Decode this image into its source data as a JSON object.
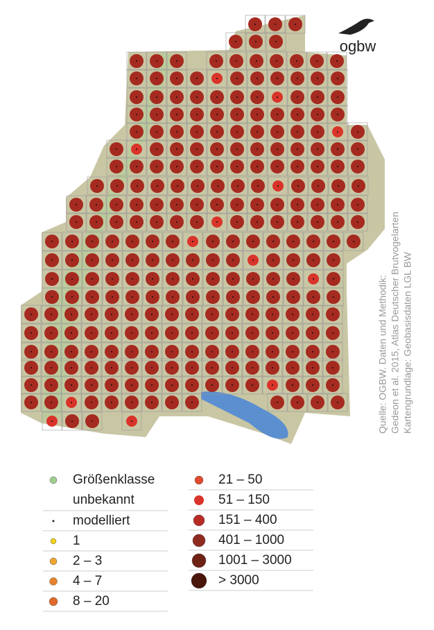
{
  "logo": "ogbw",
  "source": [
    "Quelle: OGBW. Daten und Methodik:",
    "Gedeon et al. 2015, Atlas Deutscher Brutvogelarten",
    "Kartengrundlage: Geobasisdaten LGL BW"
  ],
  "legend": {
    "left": [
      {
        "label": [
          "Größenklasse",
          "unbekannt"
        ],
        "color": "#9fcf8f"
      },
      {
        "label": [
          "modelliert"
        ],
        "color": "#222222"
      },
      {
        "label": [
          "1"
        ],
        "color": "#f3d21c"
      },
      {
        "label": [
          "2 – 3"
        ],
        "color": "#f0a430"
      },
      {
        "label": [
          "4 – 7"
        ],
        "color": "#e8822c"
      },
      {
        "label": [
          "8 – 20"
        ],
        "color": "#e06a2c"
      }
    ],
    "right": [
      {
        "label": [
          "21 – 50"
        ],
        "color": "#e04a2c"
      },
      {
        "label": [
          "51 – 150"
        ],
        "color": "#d9342a"
      },
      {
        "label": [
          "151 – 400"
        ],
        "color": "#b82a24"
      },
      {
        "label": [
          "401 – 1000"
        ],
        "color": "#8f2a1e"
      },
      {
        "label": [
          "1001 – 3000"
        ],
        "color": "#6e2214"
      },
      {
        "label": [
          "> 3000"
        ],
        "color": "#4a150a"
      }
    ]
  }
}
